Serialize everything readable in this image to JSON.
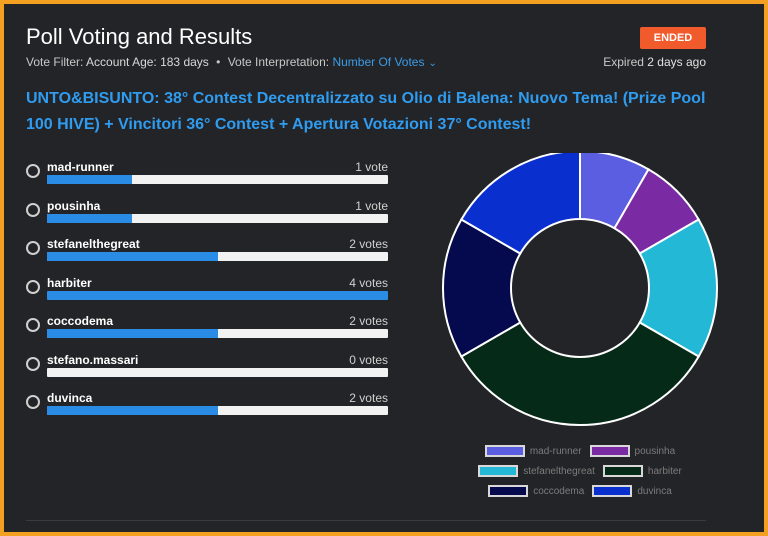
{
  "header": {
    "title": "Poll Voting and Results",
    "status_badge": "ENDED",
    "filter_label": "Vote Filter:",
    "filter_value": "Account Age: 183 days",
    "interp_label": "Vote Interpretation:",
    "interp_value": "Number Of Votes",
    "expired_prefix": "Expired",
    "expired_value": "2 days ago"
  },
  "poll": {
    "question": "UNTO&BISUNTO: 38° Contest Decentralizzato su Olio di Balena: Nuovo Tema! (Prize Pool 100 HIVE) + Vincitori 36° Contest + Apertura Votazioni 37° Contest!",
    "options": [
      {
        "name": "mad-runner",
        "votes_label": "1 vote",
        "votes": 1
      },
      {
        "name": "pousinha",
        "votes_label": "1 vote",
        "votes": 1
      },
      {
        "name": "stefanelthegreat",
        "votes_label": "2 votes",
        "votes": 2
      },
      {
        "name": "harbiter",
        "votes_label": "4 votes",
        "votes": 4
      },
      {
        "name": "coccodema",
        "votes_label": "2 votes",
        "votes": 2
      },
      {
        "name": "stefano.massari",
        "votes_label": "0 votes",
        "votes": 0
      },
      {
        "name": "duvinca",
        "votes_label": "2 votes",
        "votes": 2
      }
    ],
    "max_votes": 4
  },
  "chart_data": {
    "type": "pie",
    "categories": [
      "mad-runner",
      "pousinha",
      "stefanelthegreat",
      "harbiter",
      "coccodema",
      "duvinca"
    ],
    "values": [
      1,
      1,
      2,
      4,
      2,
      2
    ],
    "colors": [
      "#5b5ee0",
      "#7a2aa3",
      "#22b8d6",
      "#062a18",
      "#050a4e",
      "#0a2fcf"
    ],
    "legend_position": "bottom"
  }
}
